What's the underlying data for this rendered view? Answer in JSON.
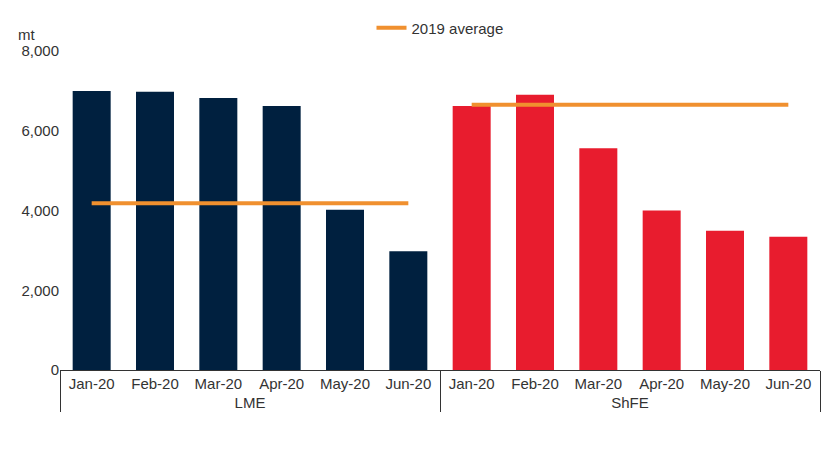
{
  "chart_data": {
    "type": "bar",
    "y_label": "mt",
    "groups": [
      "LME",
      "LME",
      "LME",
      "LME",
      "LME",
      "LME",
      "ShFE",
      "ShFE",
      "ShFE",
      "ShFE",
      "ShFE",
      "ShFE"
    ],
    "categories": [
      "Jan-20",
      "Feb-20",
      "Mar-20",
      "Apr-20",
      "May-20",
      "Jun-20",
      "Jan-20",
      "Feb-20",
      "Mar-20",
      "Apr-20",
      "May-20",
      "Jun-20"
    ],
    "values": [
      7000,
      6980,
      6820,
      6620,
      4020,
      2980,
      6620,
      6900,
      5560,
      4000,
      3490,
      3340
    ],
    "colors": [
      "#00203f",
      "#00203f",
      "#00203f",
      "#00203f",
      "#00203f",
      "#00203f",
      "#e81c2e",
      "#e81c2e",
      "#e81c2e",
      "#e81c2e",
      "#e81c2e",
      "#e81c2e"
    ],
    "series": [
      {
        "name": "2019 average",
        "type": "line",
        "color": "#f0902f",
        "values": [
          4180,
          4180,
          4180,
          4180,
          4180,
          4180,
          null,
          null,
          null,
          null,
          null,
          null
        ]
      },
      {
        "name": "2019 average",
        "type": "line",
        "color": "#f0902f",
        "values": [
          null,
          null,
          null,
          null,
          null,
          null,
          6650,
          6650,
          6650,
          6650,
          6650,
          6650
        ]
      }
    ],
    "ylim": [
      0,
      8000
    ],
    "yticks": [
      0,
      {
        "value": 2000,
        "label": "2,000"
      },
      {
        "value": 4000,
        "label": "4,000"
      },
      {
        "value": 6000,
        "label": "6,000"
      },
      {
        "value": 8000,
        "label": "8,000"
      }
    ],
    "grid": false,
    "legend": "top"
  }
}
